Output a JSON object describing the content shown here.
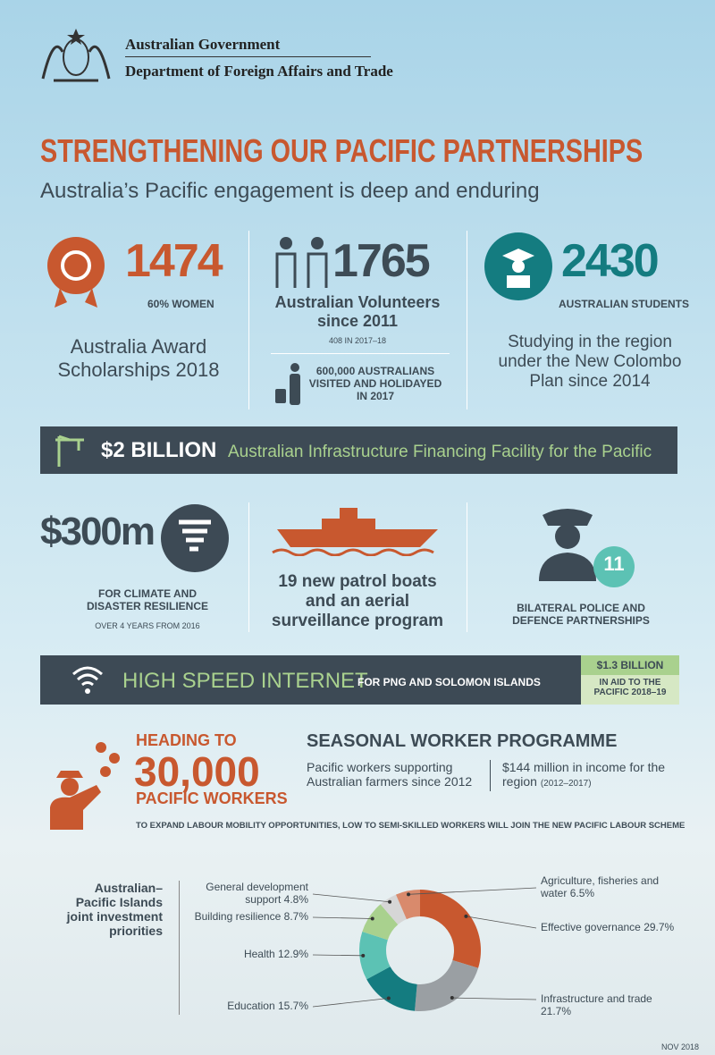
{
  "header": {
    "org": "Australian Government",
    "department": "Department of Foreign Affairs and Trade"
  },
  "title": "STRENGTHENING OUR PACIFIC PARTNERSHIPS",
  "subtitle": "Australia’s Pacific engagement is deep and enduring",
  "stats": [
    {
      "number": "1474",
      "note": "60% WOMEN",
      "label": "Australia Award Scholarships 2018"
    },
    {
      "number": "1765",
      "label": "Australian Volunteers since 2011",
      "note": "408 IN 2017–18",
      "extra": "600,000 AUSTRALIANS VISITED AND HOLIDAYED IN 2017"
    },
    {
      "number": "2430",
      "note": "AUSTRALIAN STUDENTS",
      "label": "Studying in the region under the New Colombo Plan since 2014"
    }
  ],
  "infrastructure": {
    "amount": "$2 BILLION",
    "label": "Australian Infrastructure Financing Facility for the Pacific"
  },
  "security": [
    {
      "amount": "$300m",
      "label": "FOR CLIMATE AND DISASTER RESILIENCE",
      "note": "OVER 4 YEARS FROM 2016"
    },
    {
      "label": "19 new patrol boats and an aerial surveillance program"
    },
    {
      "number": "11",
      "label": "BILATERAL POLICE AND DEFENCE PARTNERSHIPS"
    }
  ],
  "internet": {
    "title": "HIGH SPEED INTERNET",
    "label": "FOR PNG AND SOLOMON ISLANDS",
    "aid_amount": "$1.3 BILLION",
    "aid_label": "IN AID TO THE PACIFIC 2018–19"
  },
  "workers": {
    "lead": "HEADING TO",
    "number": "30,000",
    "label": "PACIFIC WORKERS",
    "programme": "SEASONAL WORKER PROGRAMME",
    "point1": "Pacific workers supporting Australian farmers since 2012",
    "point2": "$144 million in income for the region",
    "point2_note": "(2012–2017)",
    "footnote": "TO EXPAND LABOUR MOBILITY OPPORTUNITIES, LOW TO SEMI-SKILLED WORKERS WILL JOIN THE NEW PACIFIC LABOUR SCHEME"
  },
  "chart_data": {
    "type": "donut",
    "title": "Australian– Pacific Islands joint investment priorities",
    "categories": [
      "Effective governance",
      "Infrastructure and trade",
      "Education",
      "Health",
      "Building resilience",
      "General development support",
      "Agriculture, fisheries and water"
    ],
    "values": [
      29.7,
      21.7,
      15.7,
      12.9,
      8.7,
      4.8,
      6.5
    ],
    "value_labels": [
      "29.7%",
      "21.7%",
      "15.7%",
      "12.9%",
      "8.7%",
      "4.8%",
      "6.5%"
    ],
    "colors": [
      "#c8582f",
      "#9a9fa3",
      "#147c80",
      "#5cc2b4",
      "#a9d18e",
      "#d6d6d6",
      "#d98a6c"
    ]
  },
  "date": "NOV 2018"
}
